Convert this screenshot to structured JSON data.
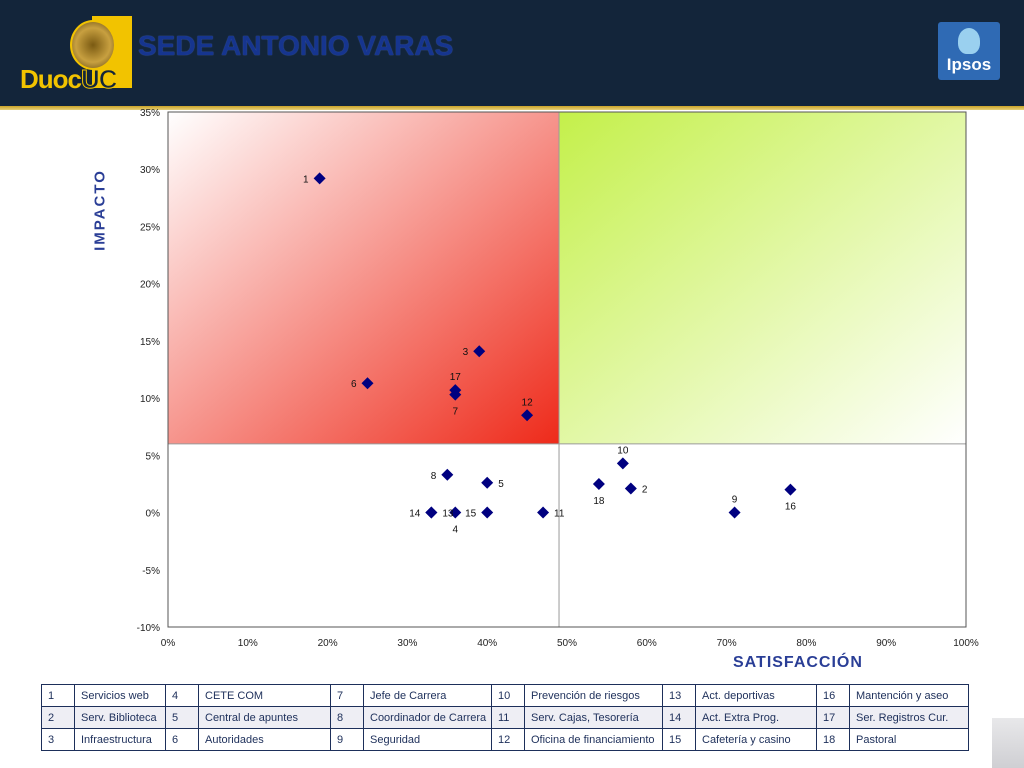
{
  "header": {
    "title": "SEDE ANTONIO VARAS",
    "logo_text_a": "Duoc",
    "logo_text_b": "UC",
    "ipsos_text": "Ipsos",
    "colors": {
      "background": "#13253a",
      "title": "#16358f",
      "logo": "#f2c300",
      "ipsos": "#2f6ab4"
    }
  },
  "chart_data": {
    "type": "scatter",
    "xlabel": "SATISFACCIÓN",
    "ylabel": "IMPACTO",
    "xlim": [
      0,
      100
    ],
    "ylim": [
      -10,
      35
    ],
    "x_ticks": [
      "0%",
      "10%",
      "20%",
      "30%",
      "40%",
      "50%",
      "60%",
      "70%",
      "80%",
      "90%",
      "100%"
    ],
    "y_ticks": [
      "-10%",
      "-5%",
      "0%",
      "5%",
      "10%",
      "15%",
      "20%",
      "25%",
      "30%",
      "35%"
    ],
    "x_tick_values": [
      0,
      10,
      20,
      30,
      40,
      50,
      60,
      70,
      80,
      90,
      100
    ],
    "y_tick_values": [
      -10,
      -5,
      0,
      5,
      10,
      15,
      20,
      25,
      30,
      35
    ],
    "quadrant_split": {
      "x": 49,
      "y": 6
    },
    "quadrant_colors": {
      "top_left": "#ee2a1a",
      "top_right": "#c4f04a"
    },
    "marker_color": "#000080",
    "grid": false,
    "points": [
      {
        "label": "1",
        "x": 19,
        "y": 29.2,
        "label_pos": "left"
      },
      {
        "label": "2",
        "x": 58,
        "y": 2.1,
        "label_pos": "right"
      },
      {
        "label": "3",
        "x": 39,
        "y": 14.1,
        "label_pos": "left"
      },
      {
        "label": "4",
        "x": 36,
        "y": 0,
        "label_pos": "below"
      },
      {
        "label": "5",
        "x": 40,
        "y": 2.6,
        "label_pos": "right"
      },
      {
        "label": "6",
        "x": 25,
        "y": 11.3,
        "label_pos": "left"
      },
      {
        "label": "7",
        "x": 36,
        "y": 10.3,
        "label_pos": "below"
      },
      {
        "label": "8",
        "x": 35,
        "y": 3.3,
        "label_pos": "left"
      },
      {
        "label": "9",
        "x": 71,
        "y": 0,
        "label_pos": "above"
      },
      {
        "label": "10",
        "x": 57,
        "y": 4.3,
        "label_pos": "above"
      },
      {
        "label": "11",
        "x": 47,
        "y": 0,
        "label_pos": "right"
      },
      {
        "label": "12",
        "x": 45,
        "y": 8.5,
        "label_pos": "above"
      },
      {
        "label": "13",
        "x": 33,
        "y": 0,
        "label_pos": "right"
      },
      {
        "label": "14",
        "x": 33,
        "y": 0,
        "label_pos": "left"
      },
      {
        "label": "15",
        "x": 40,
        "y": 0,
        "label_pos": "left"
      },
      {
        "label": "16",
        "x": 78,
        "y": 2,
        "label_pos": "below"
      },
      {
        "label": "17",
        "x": 36,
        "y": 10.7,
        "label_pos": "above"
      },
      {
        "label": "18",
        "x": 54,
        "y": 2.5,
        "label_pos": "below"
      }
    ]
  },
  "legend_rows": [
    [
      {
        "n": "1",
        "t": "Servicios web"
      },
      {
        "n": "4",
        "t": "CETE COM"
      },
      {
        "n": "7",
        "t": "Jefe de Carrera"
      },
      {
        "n": "10",
        "t": "Prevención de riesgos"
      },
      {
        "n": "13",
        "t": "Act. deportivas"
      },
      {
        "n": "16",
        "t": "Mantención y aseo"
      }
    ],
    [
      {
        "n": "2",
        "t": "Serv. Biblioteca"
      },
      {
        "n": "5",
        "t": "Central de apuntes"
      },
      {
        "n": "8",
        "t": "Coordinador de Carrera"
      },
      {
        "n": "11",
        "t": "Serv. Cajas, Tesorería"
      },
      {
        "n": "14",
        "t": "Act. Extra Prog."
      },
      {
        "n": "17",
        "t": "Ser. Registros Cur."
      }
    ],
    [
      {
        "n": "3",
        "t": "Infraestructura"
      },
      {
        "n": "6",
        "t": "Autoridades"
      },
      {
        "n": "9",
        "t": "Seguridad"
      },
      {
        "n": "12",
        "t": "Oficina de financiamiento"
      },
      {
        "n": "15",
        "t": "Cafetería y casino"
      },
      {
        "n": "18",
        "t": "Pastoral"
      }
    ]
  ]
}
